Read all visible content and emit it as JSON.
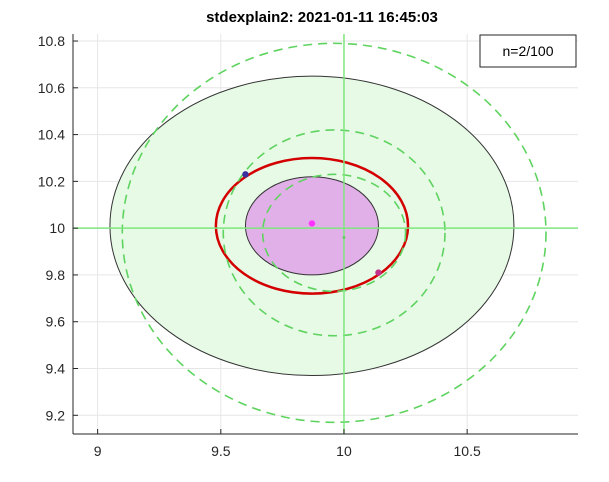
{
  "chart_data": {
    "type": "scatter",
    "title": "stdexplain2: 2021-01-11 16:45:03",
    "xlabel": "",
    "ylabel": "",
    "xlim": [
      8.9,
      10.95
    ],
    "ylim": [
      9.12,
      10.83
    ],
    "x_ticks": [
      "9",
      "9.5",
      "10",
      "10.5"
    ],
    "y_ticks": [
      "9.2",
      "9.4",
      "9.6",
      "9.8",
      "10",
      "10.2",
      "10.4",
      "10.6",
      "10.8"
    ],
    "x_tick_values": [
      9,
      9.5,
      10,
      10.5
    ],
    "y_tick_values": [
      9.2,
      9.4,
      9.6,
      9.8,
      10,
      10.2,
      10.4,
      10.6,
      10.8
    ],
    "grid": true,
    "legend": {
      "text": "n=2/100",
      "location": "top-right"
    },
    "ellipses": [
      {
        "role": "outer-filled",
        "cx": 9.87,
        "cy": 10.01,
        "rx": 0.82,
        "ry": 0.64,
        "fill": "#e6fae6",
        "stroke": "#333333",
        "dashed": false
      },
      {
        "role": "red-contour",
        "cx": 9.87,
        "cy": 10.01,
        "rx": 0.39,
        "ry": 0.29,
        "fill": "none",
        "stroke": "#d40000",
        "dashed": false
      },
      {
        "role": "inner-filled",
        "cx": 9.87,
        "cy": 10.01,
        "rx": 0.27,
        "ry": 0.21,
        "fill": "#e2b0e8",
        "stroke": "#333333",
        "dashed": false
      },
      {
        "role": "dashed-large",
        "cx": 9.96,
        "cy": 9.98,
        "rx": 0.86,
        "ry": 0.81,
        "fill": "none",
        "stroke": "#5fd35f",
        "dashed": true
      },
      {
        "role": "dashed-medium",
        "cx": 9.96,
        "cy": 9.98,
        "rx": 0.45,
        "ry": 0.44,
        "fill": "none",
        "stroke": "#5fd35f",
        "dashed": true
      },
      {
        "role": "dashed-small",
        "cx": 9.96,
        "cy": 9.98,
        "rx": 0.29,
        "ry": 0.25,
        "fill": "none",
        "stroke": "#5fd35f",
        "dashed": true
      }
    ],
    "crosshair": {
      "x": 10,
      "y": 10,
      "color": "#7ee67e"
    },
    "points": [
      {
        "x": 9.6,
        "y": 10.23,
        "color": "#3a2f9e"
      },
      {
        "x": 10.14,
        "y": 9.81,
        "color": "#c2328a"
      },
      {
        "x": 9.87,
        "y": 10.02,
        "color": "#ff33ff"
      },
      {
        "x": 10.0,
        "y": 9.96,
        "color": "#66cc66"
      }
    ]
  }
}
